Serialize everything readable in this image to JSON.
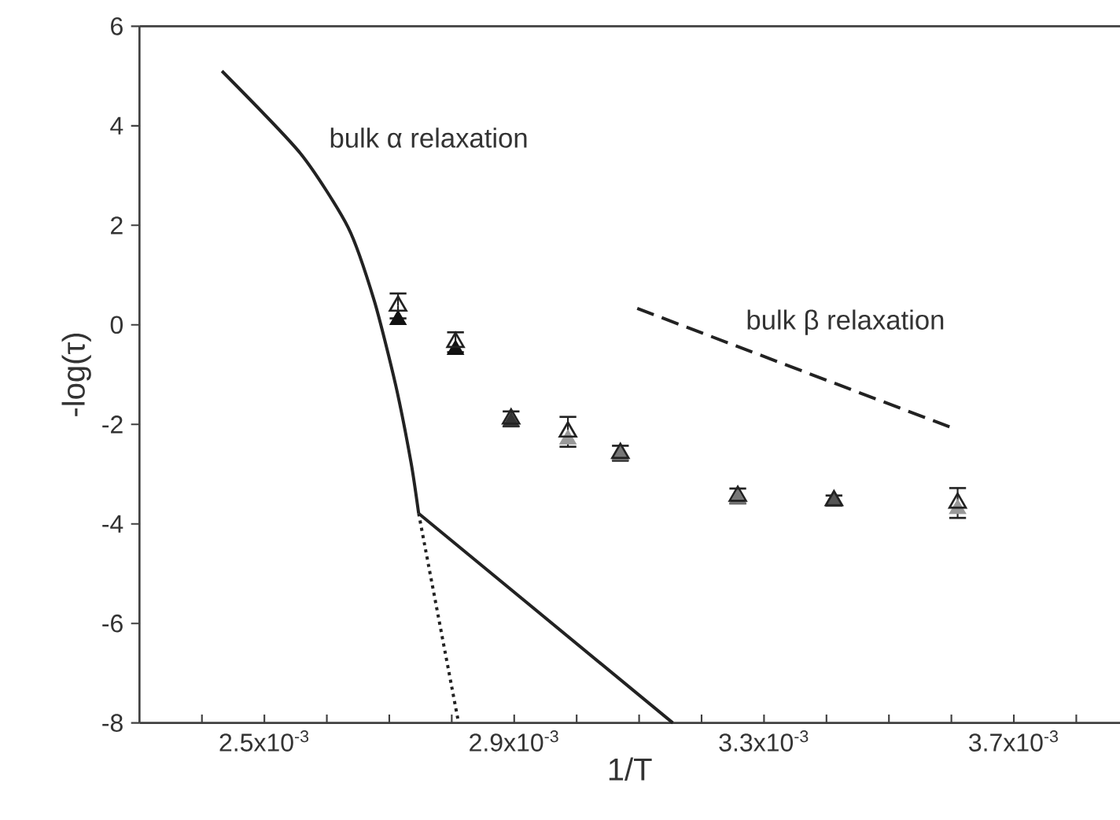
{
  "chart_data": {
    "type": "scatter",
    "xlabel": "1/T",
    "ylabel": "-log(τ)",
    "xlim": [
      0.0023,
      0.00387
    ],
    "ylim": [
      -8,
      6
    ],
    "xticks": [
      {
        "value": 0.0024,
        "label": null
      },
      {
        "value": 0.0025,
        "label": "2.5x10$^{-3}$"
      },
      {
        "value": 0.0026,
        "label": null
      },
      {
        "value": 0.0027,
        "label": null
      },
      {
        "value": 0.0028,
        "label": null
      },
      {
        "value": 0.0029,
        "label": "2.9x10$^{-3}$"
      },
      {
        "value": 0.003,
        "label": null
      },
      {
        "value": 0.0031,
        "label": null
      },
      {
        "value": 0.0032,
        "label": null
      },
      {
        "value": 0.0033,
        "label": "3.3x10$^{-3}$"
      },
      {
        "value": 0.0034,
        "label": null
      },
      {
        "value": 0.0035,
        "label": null
      },
      {
        "value": 0.0036,
        "label": null
      },
      {
        "value": 0.0037,
        "label": "3.7x10$^{-3}$"
      },
      {
        "value": 0.0038,
        "label": null
      }
    ],
    "yticks": [
      -8,
      -6,
      -4,
      -2,
      0,
      2,
      4,
      6
    ],
    "series": [
      {
        "type": "line",
        "color": "#222222",
        "line_style": "solid",
        "marker": "none",
        "x": [
          0.002432,
          0.002558,
          0.002634,
          0.002676,
          0.00271,
          0.002735,
          0.002747
        ],
        "values": [
          5.1,
          3.44,
          1.96,
          0.48,
          -1.2,
          -2.78,
          -3.79
        ]
      },
      {
        "type": "line",
        "color": "#222222",
        "line_style": "solid",
        "marker": "none",
        "x": [
          0.002747,
          0.003154
        ],
        "values": [
          -3.79,
          -8
        ]
      },
      {
        "type": "line",
        "color": "#222222",
        "line_style": "dotted",
        "marker": "none",
        "x": [
          0.002747,
          0.002811
        ],
        "values": [
          -3.79,
          -8
        ]
      },
      {
        "type": "line",
        "color": "#222222",
        "line_style": "dashed",
        "marker": "none",
        "x": [
          0.003097,
          0.003597
        ],
        "values": [
          0.33,
          -2.05
        ]
      },
      {
        "marker": "triangle",
        "colors": [
          "#111111",
          "#111111",
          "#333333",
          "#999999",
          "#777777",
          "#777777",
          "#555555",
          "#999999"
        ],
        "x": [
          0.002714,
          0.002806,
          0.002895,
          0.002986,
          0.00307,
          0.003258,
          0.003412,
          0.00361
        ],
        "values": [
          0.1,
          -0.5,
          -1.95,
          -2.3,
          -2.62,
          -3.5,
          -3.55,
          -3.7
        ]
      },
      {
        "marker": "triangle",
        "color": "#222222",
        "x": [
          0.002714,
          0.002806,
          0.002895,
          0.002986,
          0.00307,
          0.003258,
          0.003412,
          0.00361
        ],
        "values": [
          0.38,
          -0.35,
          -1.89,
          -2.15,
          -2.58,
          -3.44,
          -3.53,
          -3.58
        ],
        "errors": [
          0.25,
          0.2,
          0.15,
          0.3,
          0.15,
          0.15,
          0.1,
          0.3
        ]
      }
    ],
    "annotations": [
      "bulk α relaxation",
      "bulk β relaxation"
    ]
  }
}
